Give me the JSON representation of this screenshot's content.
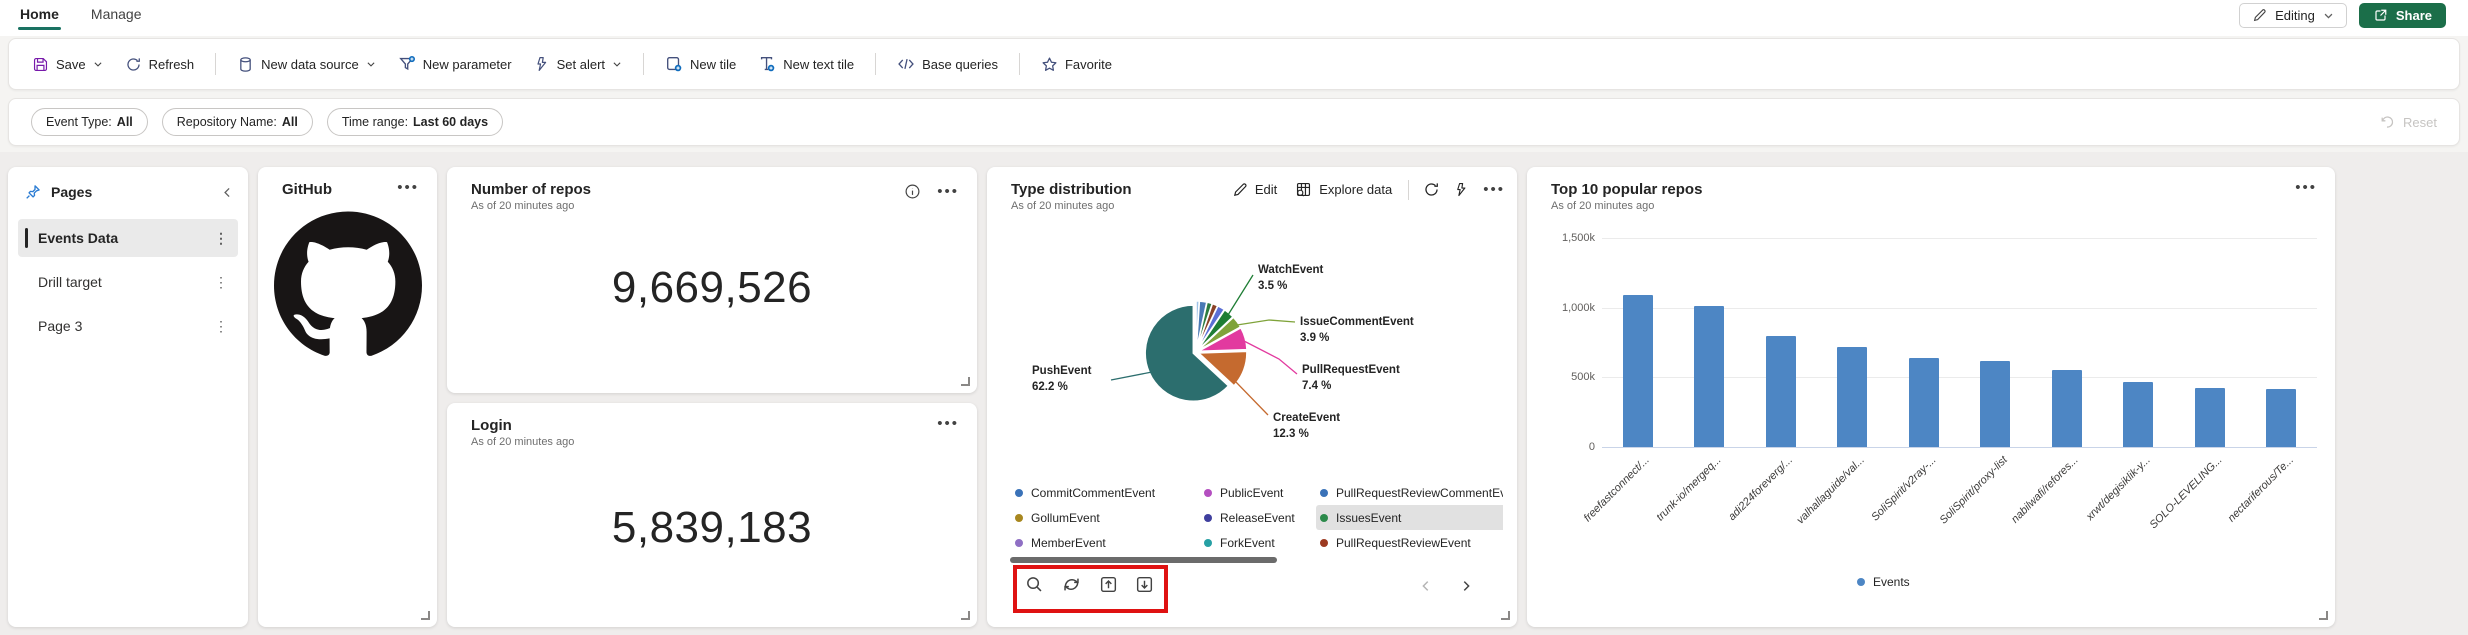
{
  "topbar": {
    "tabs": [
      {
        "label": "Home",
        "active": true
      },
      {
        "label": "Manage",
        "active": false
      }
    ],
    "editing_label": "Editing",
    "share_label": "Share"
  },
  "toolbar": {
    "save": "Save",
    "refresh": "Refresh",
    "new_data_source": "New data source",
    "new_parameter": "New parameter",
    "set_alert": "Set alert",
    "new_tile": "New tile",
    "new_text_tile": "New text tile",
    "base_queries": "Base queries",
    "favorite": "Favorite"
  },
  "filters": {
    "pills": [
      {
        "label": "Event Type:",
        "value": "All"
      },
      {
        "label": "Repository Name:",
        "value": "All"
      },
      {
        "label": "Time range:",
        "value": "Last 60 days"
      }
    ],
    "reset_label": "Reset"
  },
  "sidebar": {
    "title": "Pages",
    "items": [
      {
        "label": "Events Data",
        "selected": true
      },
      {
        "label": "Drill target",
        "selected": false
      },
      {
        "label": "Page 3",
        "selected": false
      }
    ]
  },
  "tiles": {
    "github": {
      "title": "GitHub"
    },
    "repos": {
      "title": "Number of repos",
      "subtitle": "As of 20 minutes ago",
      "value": "9,669,526"
    },
    "login": {
      "title": "Login",
      "subtitle": "As of 20 minutes ago",
      "value": "5,839,183"
    },
    "pie": {
      "title": "Type distribution",
      "subtitle": "As of 20 minutes ago",
      "actions": {
        "edit": "Edit",
        "explore": "Explore data"
      }
    },
    "bars": {
      "title": "Top 10 popular repos",
      "subtitle": "As of 20 minutes ago"
    }
  },
  "chart_data": [
    {
      "type": "pie",
      "title": "Type distribution",
      "slices": [
        {
          "name": "small-slice-1",
          "pct": 1.0,
          "pct_label": "",
          "color": "#9fc3e8",
          "labeled": false,
          "estimated": true
        },
        {
          "name": "small-slice-2",
          "pct": 2.4,
          "pct_label": "",
          "color": "#4a7ab5",
          "labeled": false,
          "estimated": true
        },
        {
          "name": "small-slice-3",
          "pct": 1.7,
          "pct_label": "",
          "color": "#2c7c3f",
          "labeled": false,
          "estimated": true
        },
        {
          "name": "small-slice-4",
          "pct": 1.8,
          "pct_label": "",
          "color": "#8a4226",
          "labeled": false,
          "estimated": true
        },
        {
          "name": "small-slice-5",
          "pct": 2.4,
          "pct_label": "",
          "color": "#5b6fd4",
          "labeled": false,
          "estimated": true
        },
        {
          "name": "WatchEvent",
          "pct": 3.5,
          "pct_label": "3.5 %",
          "color": "#1e7d34",
          "labeled": true
        },
        {
          "name": "IssueCommentEvent",
          "pct": 3.9,
          "pct_label": "3.9 %",
          "color": "#7fa33a",
          "labeled": true
        },
        {
          "name": "PullRequestEvent",
          "pct": 7.4,
          "pct_label": "7.4 %",
          "color": "#e23a9f",
          "labeled": true
        },
        {
          "name": "CreateEvent",
          "pct": 12.3,
          "pct_label": "12.3 %",
          "color": "#c56a2f",
          "labeled": true
        },
        {
          "name": "PushEvent",
          "pct": 62.2,
          "pct_label": "62.2 %",
          "color": "#2c6e6e",
          "labeled": true
        }
      ],
      "legend": [
        {
          "name": "CommitCommentEvent",
          "color": "#3a72b8"
        },
        {
          "name": "GollumEvent",
          "color": "#a8871f"
        },
        {
          "name": "MemberEvent",
          "color": "#8f6fc4"
        },
        {
          "name": "PublicEvent",
          "color": "#b44fc0"
        },
        {
          "name": "ReleaseEvent",
          "color": "#3f3f9e"
        },
        {
          "name": "ForkEvent",
          "color": "#27a0a4"
        },
        {
          "name": "PullRequestReviewCommentEvent",
          "color": "#3a72b8"
        },
        {
          "name": "IssuesEvent",
          "color": "#2c8a4b"
        },
        {
          "name": "PullRequestReviewEvent",
          "color": "#9c3a21"
        }
      ],
      "legend_selected": "IssuesEvent",
      "legend_position": "bottom"
    },
    {
      "type": "bar",
      "title": "Top 10 popular repos",
      "categories": [
        "freefastconnect/...",
        "trunk-io/mergeq...",
        "adi224foreverg/...",
        "valhallaguide/val...",
        "SoliSpirit/v2ray-...",
        "SoliSpirit/proxy-list",
        "nabilwafi/refores...",
        "xrwt/degisiklik-y...",
        "SOLO-LEVELING...",
        "nectariferous/Te..."
      ],
      "values": [
        1090,
        1010,
        800,
        720,
        640,
        615,
        555,
        465,
        425,
        415
      ],
      "unit": "k",
      "ylim": [
        0,
        1500
      ],
      "ytick_values": [
        1500,
        1000,
        500,
        0
      ],
      "ytick_labels": [
        "1,500k",
        "1,000k",
        "500k",
        "0"
      ],
      "series_name": "Events",
      "bar_color": "#4d86c4",
      "grid": true,
      "legend_position": "bottom"
    }
  ],
  "colors": {
    "accent_blue": "#0f6cbd",
    "share_green": "#1b6e49",
    "tab_underline_teal": "#1a7262",
    "save_purple": "#7719aa",
    "bar_blue": "#4d86c4",
    "annotation_red": "#df1212"
  }
}
